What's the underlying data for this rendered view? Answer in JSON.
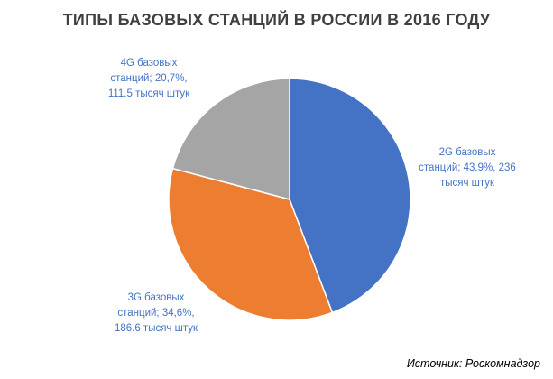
{
  "chart_data": {
    "type": "pie",
    "title": "ТИПЫ БАЗОВЫХ СТАНЦИЙ В РОССИИ В 2016 ГОДУ",
    "categories": [
      "2G базовых станций",
      "3G базовых станций",
      "4G базовых станций"
    ],
    "values": [
      43.9,
      34.6,
      20.7
    ],
    "counts": [
      "236 тысяч штук",
      "186.6 тысяч штук",
      "111.5 тысяч штук"
    ],
    "colors": [
      "#4472C4",
      "#ED7D31",
      "#A5A5A5"
    ],
    "labels": [
      {
        "line1": "2G базовых",
        "line2": "станций;  43,9%, 236",
        "line3": "тысяч штук",
        "color": "#4472C4"
      },
      {
        "line1": "3G базовых",
        "line2": "станций;  34,6%,",
        "line3": "186.6 тысяч  штук",
        "color": "#4472C4"
      },
      {
        "line1": "4G базовых",
        "line2": "станций;  20,7%,",
        "line3": "111.5 тысяч  штук",
        "color": "#4472C4"
      }
    ],
    "legend": "none"
  },
  "source": "Источник: Роскомнадзор"
}
